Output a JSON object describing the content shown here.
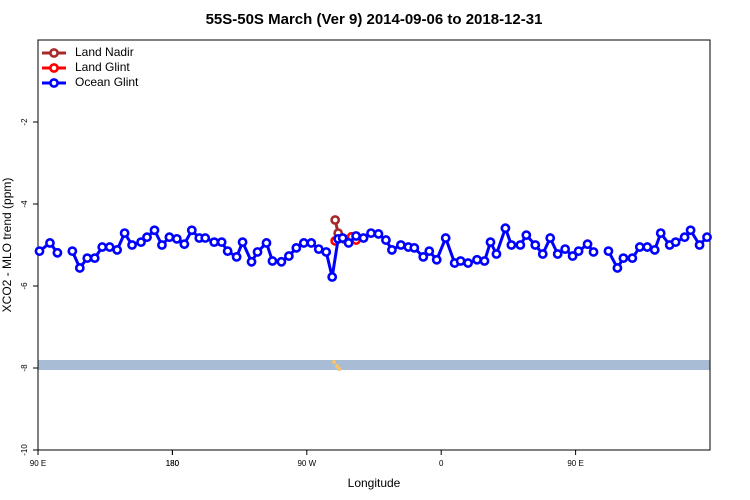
{
  "chart_data": {
    "type": "line",
    "title": "55S-50S March (Ver 9)   2014-09-06 to 2018-12-31",
    "x_label": "Longitude",
    "y_label": "XCO2 - MLO trend (ppm)",
    "xlim": [
      90,
      540
    ],
    "xticks": [
      {
        "value": 90,
        "label": "90 E"
      },
      180,
      {
        "value": 270,
        "label": "90 W"
      },
      {
        "value": 360,
        "label": "0"
      },
      {
        "value": 450,
        "label": "90 E"
      },
      180.0
    ],
    "ylim": [
      -10,
      0
    ],
    "yticks": [
      -10,
      -8,
      -6,
      -4,
      -2
    ],
    "legend": "upper left",
    "series": [
      {
        "name": "Land Nadir",
        "color": "#a52a2a",
        "x": [
          289,
          291,
          295
        ],
        "values": [
          -4.39,
          -4.71,
          -4.85
        ]
      },
      {
        "name": "Land Glint",
        "color": "#ff0000",
        "x": [
          289,
          300,
          303
        ],
        "values": [
          -4.9,
          -4.8,
          -4.88
        ]
      },
      {
        "name": "Ocean Glint",
        "color": "#0000ff",
        "x": [
          91,
          98,
          103,
          108,
          113,
          118,
          123,
          128,
          133,
          138,
          143,
          148,
          153,
          159,
          163,
          168,
          173,
          178,
          183,
          188,
          193,
          198,
          202,
          208,
          213,
          217,
          223,
          227,
          233,
          237,
          243,
          247,
          253,
          258,
          263,
          268,
          273,
          278,
          283,
          287,
          291,
          294,
          298,
          303,
          308,
          313,
          318,
          323,
          327,
          333,
          338,
          342,
          348,
          352,
          357,
          363,
          369,
          373,
          378,
          384,
          389,
          393,
          397,
          403,
          407,
          413,
          417,
          423,
          428,
          433,
          438,
          443,
          448,
          452,
          458,
          462,
          467,
          472,
          478,
          482,
          488,
          493,
          498,
          503,
          507,
          513,
          517,
          523,
          527,
          533,
          538
        ],
        "values": [
          -5.15,
          -4.95,
          -5.19,
          null,
          -5.15,
          -5.56,
          -5.32,
          -5.32,
          -5.05,
          -5.05,
          -5.12,
          -4.71,
          -5.0,
          -4.93,
          -4.81,
          -4.64,
          -5.0,
          -4.81,
          -4.85,
          -4.98,
          -4.64,
          -4.83,
          -4.83,
          -4.93,
          -4.93,
          -5.15,
          -5.29,
          -4.93,
          -5.41,
          -5.17,
          -4.95,
          -5.39,
          -5.41,
          -5.27,
          -5.07,
          -4.95,
          -4.95,
          -5.1,
          -5.17,
          -5.78,
          -4.85,
          -4.83,
          -4.95,
          -4.78,
          -4.83,
          -4.71,
          -4.73,
          -4.88,
          -5.12,
          -5.0,
          -5.05,
          -5.07,
          -5.29,
          -5.15,
          -5.36,
          -4.83,
          -5.44,
          -5.39,
          -5.44,
          -5.36,
          -5.39,
          -4.93,
          -5.22,
          -4.59,
          -5.0,
          -5.0,
          -4.76,
          -5.0,
          -5.22,
          -4.83,
          -5.22,
          -5.1,
          -5.27,
          -5.15,
          -4.98,
          -5.17,
          null,
          -5.15,
          -5.56,
          -5.32,
          -5.32,
          -5.05,
          -5.05,
          -5.12,
          -4.71,
          -5.0,
          -4.93,
          -4.81,
          -4.64,
          -5.0,
          -4.81
        ]
      }
    ]
  }
}
